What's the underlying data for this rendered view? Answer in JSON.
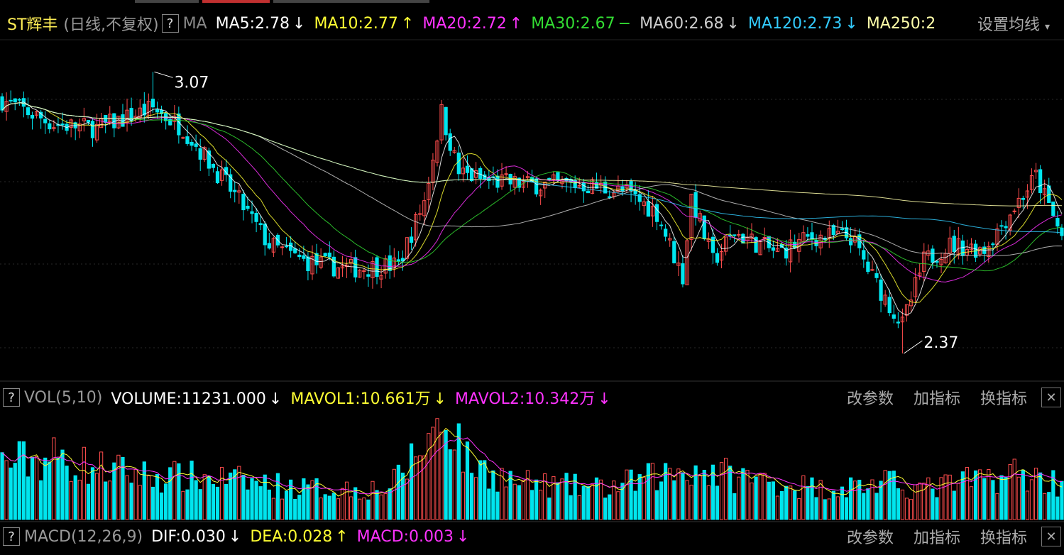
{
  "header": {
    "stock_name": "ST辉丰",
    "mode": "(日线,不复权)",
    "help": "?",
    "ma_label": "MA",
    "ma_items": [
      {
        "text": "MA5:2.78",
        "arrow": "↓",
        "color": "#ffffff"
      },
      {
        "text": "MA10:2.77",
        "arrow": "↑",
        "color": "#ffff33"
      },
      {
        "text": "MA20:2.72",
        "arrow": "↑",
        "color": "#ff33ff"
      },
      {
        "text": "MA30:2.67",
        "arrow": "−",
        "color": "#33dd33"
      },
      {
        "text": "MA60:2.68",
        "arrow": "↓",
        "color": "#cccccc"
      },
      {
        "text": "MA120:2.73",
        "arrow": "↓",
        "color": "#33ccff"
      },
      {
        "text": "MA250:2",
        "arrow": "",
        "color": "#ffffaa"
      }
    ],
    "settings": "设置均线",
    "settings_arrow": "▾"
  },
  "vol_header": {
    "help": "?",
    "name": "VOL(5,10)",
    "items": [
      {
        "text": "VOLUME:11231.000",
        "arrow": "↓",
        "color": "#ffffff"
      },
      {
        "text": "MAVOL1:10.661万",
        "arrow": "↓",
        "color": "#ffff33"
      },
      {
        "text": "MAVOL2:10.342万",
        "arrow": "↓",
        "color": "#ff33ff"
      }
    ],
    "tools": [
      "改参数",
      "加指标",
      "换指标"
    ],
    "close": "✕"
  },
  "macd_header": {
    "help": "?",
    "name": "MACD(12,26,9)",
    "items": [
      {
        "text": "DIF:0.030",
        "arrow": "↓",
        "color": "#ffffff"
      },
      {
        "text": "DEA:0.028",
        "arrow": "↑",
        "color": "#ffff33"
      },
      {
        "text": "MACD:0.003",
        "arrow": "↓",
        "color": "#ff33ff"
      }
    ],
    "tools": [
      "改参数",
      "加指标",
      "换指标"
    ],
    "close": "✕"
  },
  "chart_data": {
    "type": "candlestick",
    "price_range": [
      2.31,
      3.15
    ],
    "annotations": [
      {
        "label": "3.07",
        "index": 35,
        "kind": "high"
      },
      {
        "label": "2.37",
        "index": 209,
        "kind": "low"
      }
    ],
    "colors": {
      "up": "#ff4d4d",
      "down": "#00e5ee",
      "ma5": "#ffffff",
      "ma10": "#ffff33",
      "ma20": "#ff33ff",
      "ma30": "#33dd33",
      "ma60": "#cccccc",
      "ma120": "#33ccff",
      "ma250": "#ffffaa",
      "grid": "#2a2a2a"
    },
    "price_keypoints": [
      [
        0,
        3.0
      ],
      [
        12,
        2.94
      ],
      [
        22,
        2.93
      ],
      [
        35,
        2.98
      ],
      [
        42,
        2.93
      ],
      [
        55,
        2.75
      ],
      [
        62,
        2.64
      ],
      [
        70,
        2.6
      ],
      [
        80,
        2.58
      ],
      [
        92,
        2.59
      ],
      [
        98,
        2.75
      ],
      [
        102,
        2.97
      ],
      [
        106,
        2.82
      ],
      [
        112,
        2.8
      ],
      [
        122,
        2.79
      ],
      [
        135,
        2.79
      ],
      [
        145,
        2.77
      ],
      [
        152,
        2.72
      ],
      [
        158,
        2.56
      ],
      [
        160,
        2.76
      ],
      [
        165,
        2.6
      ],
      [
        170,
        2.67
      ],
      [
        180,
        2.62
      ],
      [
        188,
        2.66
      ],
      [
        197,
        2.66
      ],
      [
        202,
        2.56
      ],
      [
        209,
        2.44
      ],
      [
        214,
        2.6
      ],
      [
        220,
        2.64
      ],
      [
        228,
        2.63
      ],
      [
        234,
        2.72
      ],
      [
        240,
        2.81
      ],
      [
        246,
        2.66
      ]
    ],
    "vol_keypoints": [
      [
        0,
        0.55
      ],
      [
        12,
        0.6
      ],
      [
        22,
        0.5
      ],
      [
        35,
        0.42
      ],
      [
        50,
        0.4
      ],
      [
        70,
        0.3
      ],
      [
        90,
        0.3
      ],
      [
        100,
        0.85
      ],
      [
        104,
        1.0
      ],
      [
        108,
        0.55
      ],
      [
        120,
        0.35
      ],
      [
        140,
        0.3
      ],
      [
        160,
        0.5
      ],
      [
        170,
        0.42
      ],
      [
        190,
        0.3
      ],
      [
        205,
        0.35
      ],
      [
        215,
        0.3
      ],
      [
        235,
        0.45
      ],
      [
        246,
        0.35
      ]
    ]
  }
}
